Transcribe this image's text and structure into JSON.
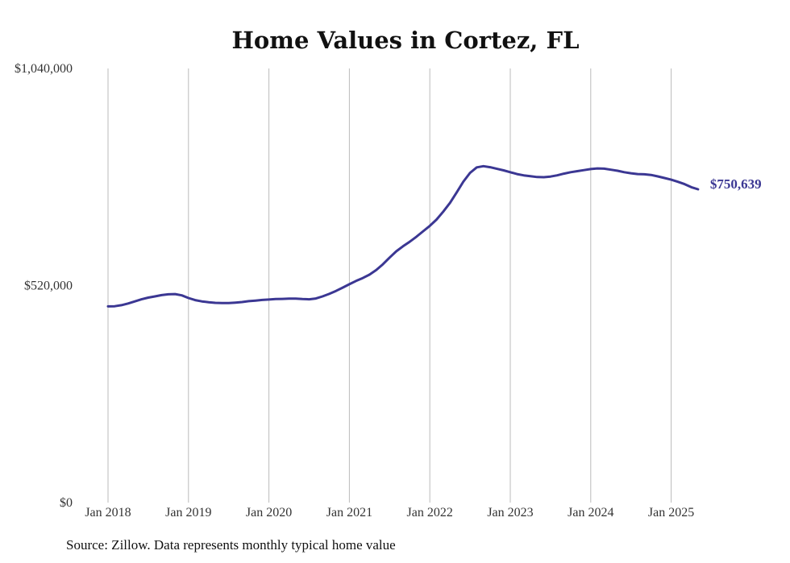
{
  "chart_data": {
    "type": "line",
    "title": "Home Values in Cortez, FL",
    "xlabel": "",
    "ylabel": "",
    "ylim": [
      0,
      1040000
    ],
    "xlim": [
      "2018-01",
      "2025-06"
    ],
    "grid": "vertical lines at yearly ticks",
    "y_ticks": [
      "$0",
      "$520,000",
      "$1,040,000"
    ],
    "y_tick_values": [
      0,
      520000,
      1040000
    ],
    "x_ticks": [
      "Jan 2018",
      "Jan 2019",
      "Jan 2020",
      "Jan 2021",
      "Jan 2022",
      "Jan 2023",
      "Jan 2024",
      "Jan 2025"
    ],
    "x_tick_dates": [
      "2018-01",
      "2019-01",
      "2020-01",
      "2021-01",
      "2022-01",
      "2023-01",
      "2024-01",
      "2025-01"
    ],
    "end_label": "$750,639",
    "series": [
      {
        "color": "#3b3793",
        "points": [
          [
            "2018-01",
            470000
          ],
          [
            "2018-02",
            470500
          ],
          [
            "2018-03",
            473000
          ],
          [
            "2018-04",
            477000
          ],
          [
            "2018-05",
            482000
          ],
          [
            "2018-06",
            487000
          ],
          [
            "2018-07",
            491000
          ],
          [
            "2018-08",
            494000
          ],
          [
            "2018-09",
            497000
          ],
          [
            "2018-10",
            499000
          ],
          [
            "2018-11",
            499500
          ],
          [
            "2018-12",
            496500
          ],
          [
            "2019-01",
            490000
          ],
          [
            "2019-02",
            485000
          ],
          [
            "2019-03",
            482000
          ],
          [
            "2019-04",
            480000
          ],
          [
            "2019-05",
            478500
          ],
          [
            "2019-06",
            478000
          ],
          [
            "2019-07",
            478000
          ],
          [
            "2019-08",
            479000
          ],
          [
            "2019-09",
            480500
          ],
          [
            "2019-10",
            482500
          ],
          [
            "2019-11",
            484000
          ],
          [
            "2019-12",
            485500
          ],
          [
            "2020-01",
            486500
          ],
          [
            "2020-02",
            487500
          ],
          [
            "2020-03",
            488000
          ],
          [
            "2020-04",
            488500
          ],
          [
            "2020-05",
            488500
          ],
          [
            "2020-06",
            487500
          ],
          [
            "2020-07",
            487000
          ],
          [
            "2020-08",
            489000
          ],
          [
            "2020-09",
            494000
          ],
          [
            "2020-10",
            500000
          ],
          [
            "2020-11",
            507000
          ],
          [
            "2020-12",
            515000
          ],
          [
            "2021-01",
            523000
          ],
          [
            "2021-02",
            531000
          ],
          [
            "2021-03",
            538000
          ],
          [
            "2021-04",
            546000
          ],
          [
            "2021-05",
            557000
          ],
          [
            "2021-06",
            571000
          ],
          [
            "2021-07",
            587000
          ],
          [
            "2021-08",
            602000
          ],
          [
            "2021-09",
            614000
          ],
          [
            "2021-10",
            625000
          ],
          [
            "2021-11",
            637000
          ],
          [
            "2021-12",
            650000
          ],
          [
            "2022-01",
            663000
          ],
          [
            "2022-02",
            678000
          ],
          [
            "2022-03",
            697000
          ],
          [
            "2022-04",
            718000
          ],
          [
            "2022-05",
            743000
          ],
          [
            "2022-06",
            769000
          ],
          [
            "2022-07",
            790000
          ],
          [
            "2022-08",
            803000
          ],
          [
            "2022-09",
            806000
          ],
          [
            "2022-10",
            803500
          ],
          [
            "2022-11",
            799500
          ],
          [
            "2022-12",
            796000
          ],
          [
            "2023-01",
            791500
          ],
          [
            "2023-02",
            787000
          ],
          [
            "2023-03",
            784000
          ],
          [
            "2023-04",
            782000
          ],
          [
            "2023-05",
            780000
          ],
          [
            "2023-06",
            779500
          ],
          [
            "2023-07",
            781000
          ],
          [
            "2023-08",
            784000
          ],
          [
            "2023-09",
            788000
          ],
          [
            "2023-10",
            791500
          ],
          [
            "2023-11",
            794000
          ],
          [
            "2023-12",
            796500
          ],
          [
            "2024-01",
            799000
          ],
          [
            "2024-02",
            800500
          ],
          [
            "2024-03",
            800000
          ],
          [
            "2024-04",
            797500
          ],
          [
            "2024-05",
            795000
          ],
          [
            "2024-06",
            791500
          ],
          [
            "2024-07",
            789000
          ],
          [
            "2024-08",
            787000
          ],
          [
            "2024-09",
            786500
          ],
          [
            "2024-10",
            785000
          ],
          [
            "2024-11",
            781500
          ],
          [
            "2024-12",
            777500
          ],
          [
            "2025-01",
            773500
          ],
          [
            "2025-02",
            768500
          ],
          [
            "2025-03",
            763000
          ],
          [
            "2025-04",
            755500
          ],
          [
            "2025-05",
            750639
          ]
        ]
      }
    ]
  },
  "source_text": "Source: Zillow. Data represents monthly typical home value"
}
